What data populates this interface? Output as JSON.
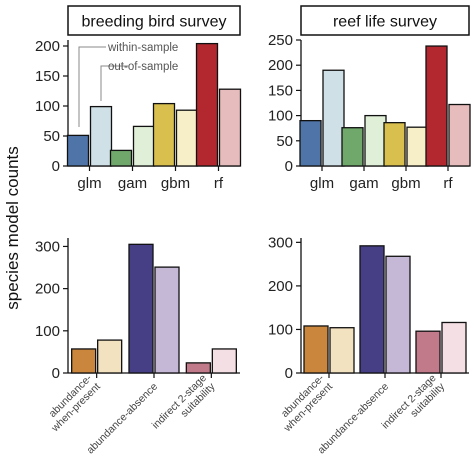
{
  "ylabel": "species model counts",
  "annotations": {
    "within": "within-sample",
    "out": "out-of-sample"
  },
  "chart_data": [
    {
      "type": "bar",
      "title": "breeding bird survey",
      "categories": [
        "glm",
        "gam",
        "gbm",
        "rf"
      ],
      "ylim": [
        0,
        210
      ],
      "yticks": [
        0,
        50,
        100,
        150,
        200
      ],
      "series": [
        {
          "name": "within-sample",
          "values": [
            51,
            26,
            104,
            204
          ]
        },
        {
          "name": "out-of-sample",
          "values": [
            99,
            66,
            93,
            128
          ]
        }
      ],
      "colors": {
        "within": [
          "#4f74a8",
          "#6fa86a",
          "#d9bf4e",
          "#b3282f"
        ],
        "out": [
          "#cfe0e6",
          "#e0efd8",
          "#f7efc8",
          "#e6bcbc"
        ]
      }
    },
    {
      "type": "bar",
      "title": "reef life survey",
      "categories": [
        "glm",
        "gam",
        "gbm",
        "rf"
      ],
      "ylim": [
        0,
        250
      ],
      "yticks": [
        0,
        50,
        100,
        150,
        200,
        250
      ],
      "series": [
        {
          "name": "within-sample",
          "values": [
            90,
            76,
            86,
            238
          ]
        },
        {
          "name": "out-of-sample",
          "values": [
            190,
            100,
            77,
            122
          ]
        }
      ],
      "colors": {
        "within": [
          "#4f74a8",
          "#6fa86a",
          "#d9bf4e",
          "#b3282f"
        ],
        "out": [
          "#cfe0e6",
          "#e0efd8",
          "#f7efc8",
          "#e6bcbc"
        ]
      }
    },
    {
      "type": "bar",
      "title": "",
      "categories": [
        "abundance-\nwhen-present",
        "abundance-absence",
        "indirect 2-stage\nsuitability"
      ],
      "ylim": [
        0,
        320
      ],
      "yticks": [
        0,
        100,
        200,
        300
      ],
      "series": [
        {
          "name": "within-sample",
          "values": [
            57,
            305,
            24
          ]
        },
        {
          "name": "out-of-sample",
          "values": [
            78,
            251,
            57
          ]
        }
      ],
      "colors": {
        "within": [
          "#c9863c",
          "#473f86",
          "#c07a8a"
        ],
        "out": [
          "#f3e2c0",
          "#c5b7d6",
          "#f4dfe4"
        ]
      }
    },
    {
      "type": "bar",
      "title": "",
      "categories": [
        "abundance-\nwhen-present",
        "abundance-absence",
        "indirect 2-stage\nsuitability"
      ],
      "ylim": [
        0,
        310
      ],
      "yticks": [
        0,
        100,
        200,
        300
      ],
      "series": [
        {
          "name": "within-sample",
          "values": [
            108,
            292,
            96
          ]
        },
        {
          "name": "out-of-sample",
          "values": [
            104,
            268,
            116
          ]
        }
      ],
      "colors": {
        "within": [
          "#c9863c",
          "#473f86",
          "#c07a8a"
        ],
        "out": [
          "#f3e2c0",
          "#c5b7d6",
          "#f4dfe4"
        ]
      }
    }
  ]
}
